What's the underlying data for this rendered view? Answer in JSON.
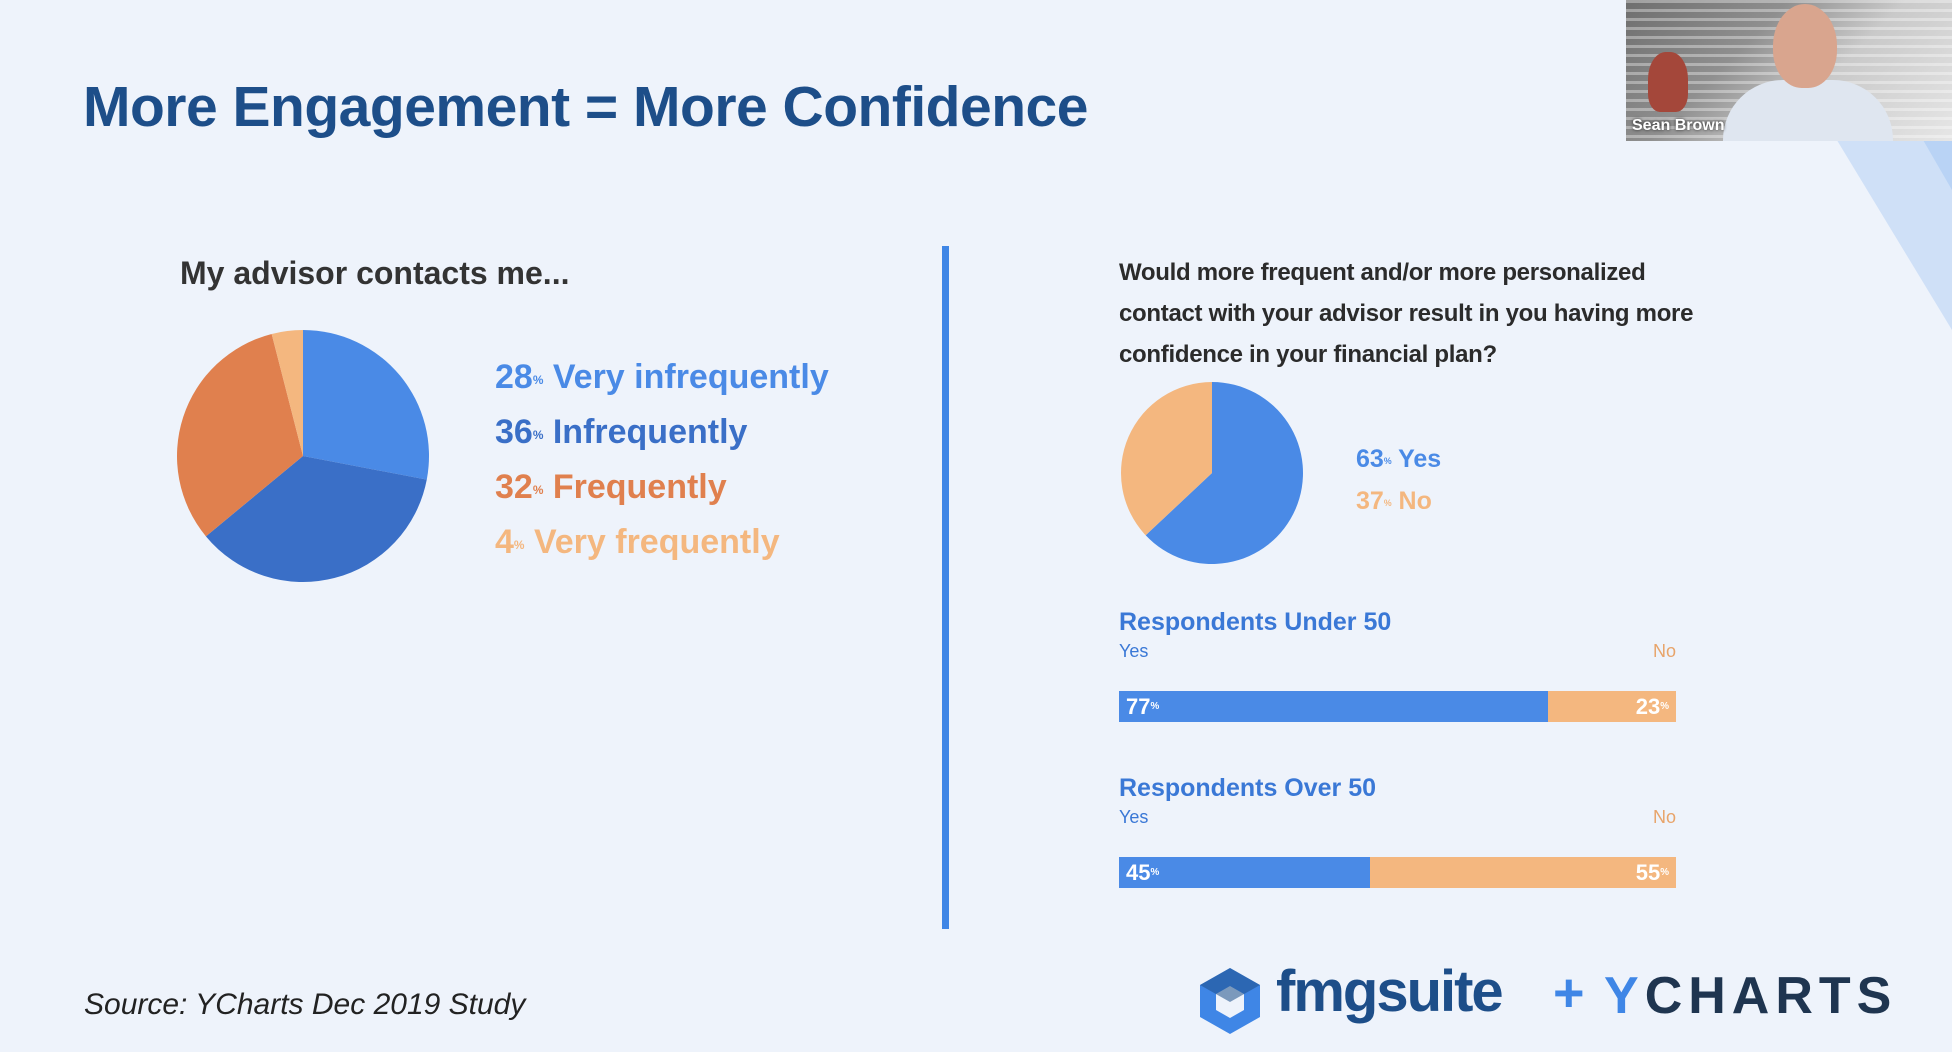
{
  "slide": {
    "title": "More Engagement = More Confidence",
    "source": "Source: YCharts Dec 2019 Study"
  },
  "webcam": {
    "name": "Sean Brown"
  },
  "logos": {
    "fmg": "fmgsuite",
    "plus": "+",
    "ycharts_y": "Y",
    "ycharts_rest": "CHARTS"
  },
  "colors": {
    "very_infrequently": "#4a8ae6",
    "infrequently": "#3a6fc7",
    "frequently": "#e0804e",
    "very_frequently": "#f4b77f",
    "yes": "#4a8ae6",
    "no": "#f4b77f",
    "divider": "#3f86e6",
    "title": "#1d4e89"
  },
  "chart_data": [
    {
      "type": "pie",
      "title": "My advisor contacts me...",
      "categories": [
        "Very infrequently",
        "Infrequently",
        "Frequently",
        "Very frequently"
      ],
      "values": [
        28,
        36,
        32,
        4
      ],
      "labels": [
        "28",
        "36",
        "32",
        "4"
      ],
      "unit": "%",
      "legend": "right"
    },
    {
      "type": "pie",
      "title": "Would more frequent and/or more personalized contact with your advisor result in you having more confidence in your financial plan?",
      "categories": [
        "Yes",
        "No"
      ],
      "values": [
        63,
        37
      ],
      "labels": [
        "63",
        "37"
      ],
      "unit": "%",
      "legend": "right"
    },
    {
      "type": "bar",
      "title": "Respondents Under 50",
      "categories": [
        "Yes",
        "No"
      ],
      "values": [
        77,
        23
      ],
      "labels": [
        "77",
        "23"
      ],
      "unit": "%",
      "stacked": true,
      "orientation": "horizontal"
    },
    {
      "type": "bar",
      "title": "Respondents Over 50",
      "categories": [
        "Yes",
        "No"
      ],
      "values": [
        45,
        55
      ],
      "labels": [
        "45",
        "55"
      ],
      "unit": "%",
      "stacked": true,
      "orientation": "horizontal"
    }
  ]
}
